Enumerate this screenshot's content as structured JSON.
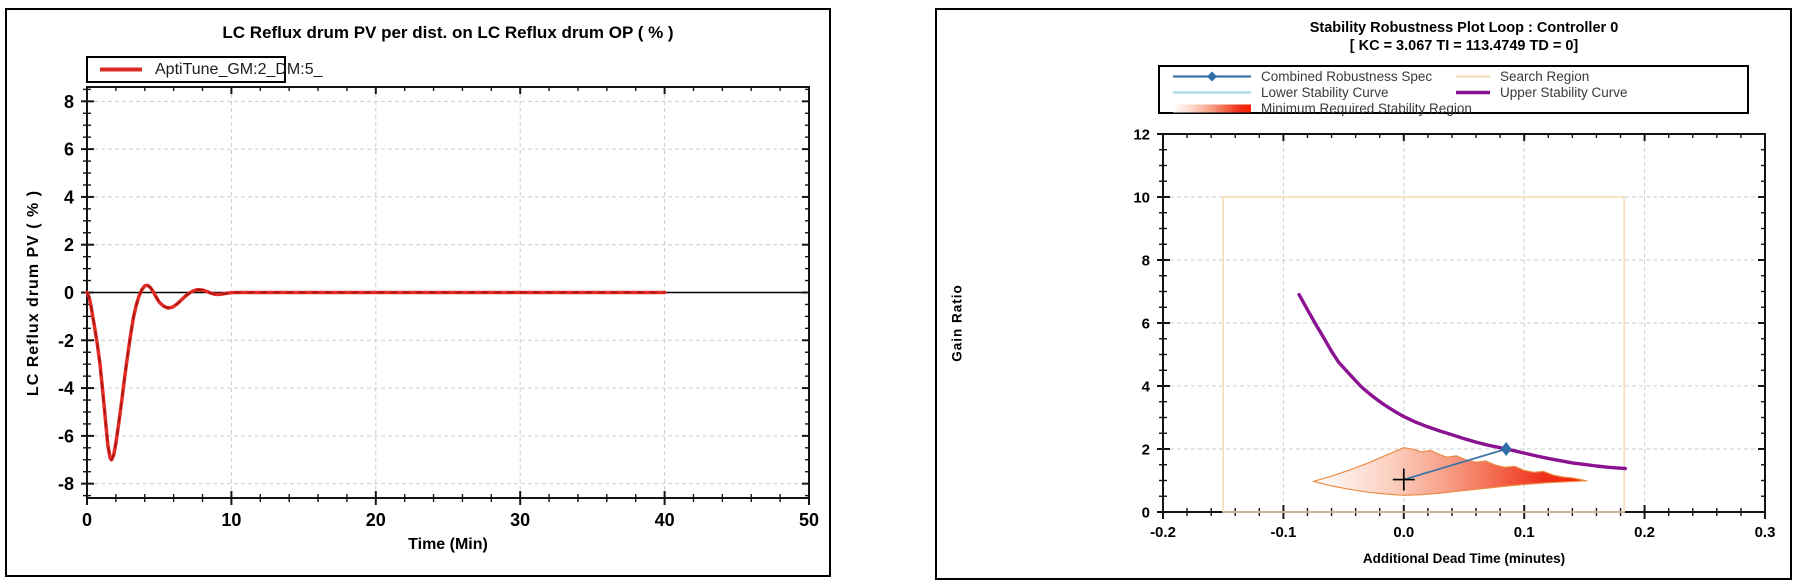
{
  "page": {
    "background": "#ffffff",
    "panel_border": "#000000"
  },
  "chart_data": [
    {
      "type": "line",
      "title": "LC Reflux drum PV per dist. on LC Reflux drum OP ( % )",
      "xlabel": "Time (Min)",
      "ylabel": "LC Reflux drum PV ( % )",
      "xlim": [
        0,
        50
      ],
      "ylim": [
        -8.6,
        8.6
      ],
      "x_ticks": [
        0,
        10,
        20,
        30,
        40,
        50
      ],
      "x_tick_labels": [
        "0",
        "10",
        "20",
        "30",
        "40",
        "50"
      ],
      "y_ticks": [
        -8,
        -6,
        -4,
        -2,
        0,
        2,
        4,
        6,
        8
      ],
      "y_tick_labels": [
        "-8",
        "-6",
        "-4",
        "-2",
        "0",
        "2",
        "4",
        "6",
        "8"
      ],
      "x_minor_step": 2,
      "y_minor_step": 0.5,
      "grid": true,
      "zero_line": true,
      "legend_position": "top-left",
      "legend": [
        {
          "label": "AptiTune_GM:2_DM:5_",
          "color": "#d92b25",
          "type": "line"
        }
      ],
      "series": [
        {
          "name": "AptiTune_GM:2_DM:5_",
          "color": "#e22c25",
          "dash_overlay_color": "#a01310",
          "points": [
            [
              0,
              0
            ],
            [
              0.15,
              -0.2
            ],
            [
              0.3,
              -0.65
            ],
            [
              0.5,
              -1.35
            ],
            [
              0.7,
              -2.1
            ],
            [
              0.9,
              -3.0
            ],
            [
              1.1,
              -4.2
            ],
            [
              1.3,
              -5.5
            ],
            [
              1.45,
              -6.4
            ],
            [
              1.6,
              -6.92
            ],
            [
              1.7,
              -7.0
            ],
            [
              1.85,
              -6.8
            ],
            [
              2.0,
              -6.3
            ],
            [
              2.2,
              -5.45
            ],
            [
              2.4,
              -4.55
            ],
            [
              2.6,
              -3.6
            ],
            [
              2.8,
              -2.7
            ],
            [
              3.0,
              -1.85
            ],
            [
              3.2,
              -1.1
            ],
            [
              3.4,
              -0.55
            ],
            [
              3.6,
              -0.15
            ],
            [
              3.8,
              0.12
            ],
            [
              4.0,
              0.28
            ],
            [
              4.2,
              0.3
            ],
            [
              4.4,
              0.2
            ],
            [
              4.6,
              0.02
            ],
            [
              4.8,
              -0.2
            ],
            [
              5.0,
              -0.4
            ],
            [
              5.3,
              -0.57
            ],
            [
              5.6,
              -0.65
            ],
            [
              5.9,
              -0.62
            ],
            [
              6.2,
              -0.5
            ],
            [
              6.5,
              -0.33
            ],
            [
              6.8,
              -0.16
            ],
            [
              7.1,
              -0.02
            ],
            [
              7.4,
              0.08
            ],
            [
              7.7,
              0.12
            ],
            [
              8.0,
              0.1
            ],
            [
              8.3,
              0.04
            ],
            [
              8.6,
              -0.03
            ],
            [
              8.9,
              -0.08
            ],
            [
              9.2,
              -0.08
            ],
            [
              9.5,
              -0.05
            ],
            [
              9.8,
              -0.02
            ],
            [
              10.2,
              0
            ],
            [
              40,
              0
            ]
          ]
        }
      ],
      "colors": {
        "grid": "#cdcdcd",
        "axis": "#141414"
      }
    },
    {
      "type": "line",
      "title": "Stability Robustness Plot Loop : Controller 0",
      "subtitle": "[ KC = 3.067 TI = 113.4749 TD = 0]",
      "xlabel": "Additional Dead Time (minutes)",
      "ylabel": "Gain Ratio",
      "xlim": [
        -0.2,
        0.3
      ],
      "ylim": [
        0,
        12
      ],
      "x_ticks": [
        -0.2,
        -0.1,
        0,
        0.1,
        0.2,
        0.3
      ],
      "x_tick_labels": [
        "-0.2",
        "-0.1",
        "0.0",
        "0.1",
        "0.2",
        "0.3"
      ],
      "y_ticks": [
        0,
        2,
        4,
        6,
        8,
        10,
        12
      ],
      "y_tick_labels": [
        "0",
        "2",
        "4",
        "6",
        "8",
        "10",
        "12"
      ],
      "x_minor_step": 0.02,
      "y_minor_step": 0.5,
      "grid": true,
      "zero_line": false,
      "legend_position": "top-center",
      "legend": [
        {
          "label": "Combined Robustness Spec",
          "color": "#3e74a8",
          "type": "line-diamond"
        },
        {
          "label": "Lower Stability Curve",
          "color": "#a8d6e4",
          "type": "line"
        },
        {
          "label": "Minimum Required Stability Region",
          "color": "#ff2000",
          "type": "gradient-swatch"
        },
        {
          "label": "Search Region",
          "color": "#f3ddbb",
          "type": "line"
        },
        {
          "label": "Upper Stability Curve",
          "color": "#8b1290",
          "type": "line-thick"
        }
      ],
      "search_region": {
        "x": [
          -0.15,
          0.183
        ],
        "y": [
          0,
          10
        ],
        "color": "#f3ddbb"
      },
      "upper_stability_curve": {
        "color": "#8b1290",
        "points": [
          [
            -0.087,
            6.9
          ],
          [
            -0.08,
            6.42
          ],
          [
            -0.073,
            5.95
          ],
          [
            -0.066,
            5.5
          ],
          [
            -0.06,
            5.1
          ],
          [
            -0.054,
            4.75
          ],
          [
            -0.048,
            4.5
          ],
          [
            -0.042,
            4.25
          ],
          [
            -0.036,
            4.0
          ],
          [
            -0.03,
            3.8
          ],
          [
            -0.024,
            3.62
          ],
          [
            -0.018,
            3.45
          ],
          [
            -0.012,
            3.3
          ],
          [
            -0.006,
            3.16
          ],
          [
            0,
            3.03
          ],
          [
            0.01,
            2.85
          ],
          [
            0.02,
            2.7
          ],
          [
            0.03,
            2.57
          ],
          [
            0.04,
            2.45
          ],
          [
            0.05,
            2.33
          ],
          [
            0.06,
            2.22
          ],
          [
            0.07,
            2.12
          ],
          [
            0.08,
            2.04
          ],
          [
            0.09,
            1.96
          ],
          [
            0.1,
            1.87
          ],
          [
            0.11,
            1.78
          ],
          [
            0.12,
            1.7
          ],
          [
            0.13,
            1.63
          ],
          [
            0.14,
            1.56
          ],
          [
            0.15,
            1.51
          ],
          [
            0.16,
            1.46
          ],
          [
            0.17,
            1.42
          ],
          [
            0.18,
            1.39
          ],
          [
            0.184,
            1.38
          ]
        ]
      },
      "lower_stability_curve": {
        "color": "#a8d6e4",
        "points": []
      },
      "combined_robustness_spec": {
        "color": "#3e74a8",
        "diamond_color": "#2f6ea6",
        "from": [
          0,
          1.03
        ],
        "to": [
          0.085,
          2.0
        ]
      },
      "design_point_cross": [
        0,
        1.03
      ],
      "min_required_stability_region": {
        "outline": "#ea8c44",
        "gradient": [
          "#ffffff",
          "#fbd0c0",
          "#f79c83",
          "#f3654a",
          "#ef2f1a",
          "#ff2000"
        ],
        "top_points": [
          [
            -0.075,
            0.97
          ],
          [
            -0.06,
            1.14
          ],
          [
            -0.045,
            1.33
          ],
          [
            -0.03,
            1.55
          ],
          [
            -0.015,
            1.8
          ],
          [
            0,
            2.04
          ],
          [
            0.008,
            1.99
          ],
          [
            0.014,
            1.91
          ],
          [
            0.022,
            1.95
          ],
          [
            0.03,
            1.82
          ],
          [
            0.036,
            1.74
          ],
          [
            0.044,
            1.78
          ],
          [
            0.052,
            1.65
          ],
          [
            0.06,
            1.58
          ],
          [
            0.068,
            1.62
          ],
          [
            0.076,
            1.49
          ],
          [
            0.084,
            1.42
          ],
          [
            0.092,
            1.45
          ],
          [
            0.1,
            1.32
          ],
          [
            0.108,
            1.26
          ],
          [
            0.116,
            1.29
          ],
          [
            0.124,
            1.17
          ],
          [
            0.132,
            1.11
          ],
          [
            0.14,
            1.08
          ],
          [
            0.148,
            1.02
          ],
          [
            0.152,
            0.99
          ]
        ],
        "bottom_points": [
          [
            -0.075,
            0.97
          ],
          [
            -0.06,
            0.83
          ],
          [
            -0.045,
            0.72
          ],
          [
            -0.03,
            0.63
          ],
          [
            -0.015,
            0.57
          ],
          [
            0,
            0.53
          ],
          [
            0.015,
            0.55
          ],
          [
            0.03,
            0.6
          ],
          [
            0.045,
            0.66
          ],
          [
            0.06,
            0.72
          ],
          [
            0.075,
            0.78
          ],
          [
            0.09,
            0.84
          ],
          [
            0.105,
            0.89
          ],
          [
            0.12,
            0.93
          ],
          [
            0.135,
            0.96
          ],
          [
            0.152,
            0.99
          ]
        ]
      },
      "colors": {
        "grid": "#cdcdcd",
        "axis": "#141414"
      }
    }
  ]
}
